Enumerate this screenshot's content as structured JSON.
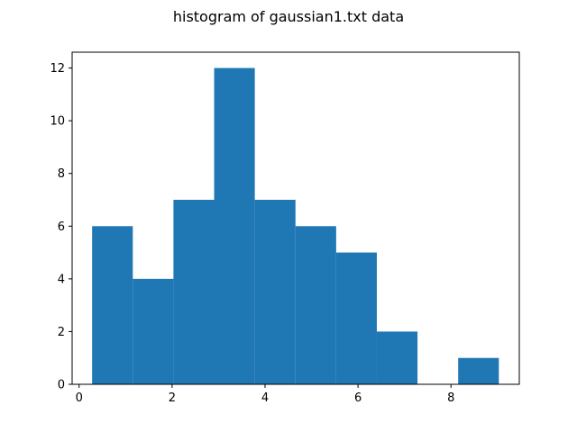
{
  "chart_data": {
    "type": "bar",
    "title": "histogram of gaussian1.txt data",
    "xlabel": "",
    "ylabel": "",
    "xlim": [
      -0.15,
      9.47
    ],
    "ylim": [
      0,
      12.6
    ],
    "xticks": [
      0,
      2,
      4,
      6,
      8
    ],
    "yticks": [
      0,
      2,
      4,
      6,
      8,
      10,
      12
    ],
    "bin_edges": [
      0.28,
      1.155,
      2.03,
      2.905,
      3.78,
      4.655,
      5.53,
      6.405,
      7.28,
      8.155,
      9.03
    ],
    "counts": [
      6,
      4,
      7,
      12,
      7,
      6,
      5,
      2,
      0,
      1
    ],
    "bar_color": "#1f77b4",
    "grid": false,
    "legend": "none"
  }
}
